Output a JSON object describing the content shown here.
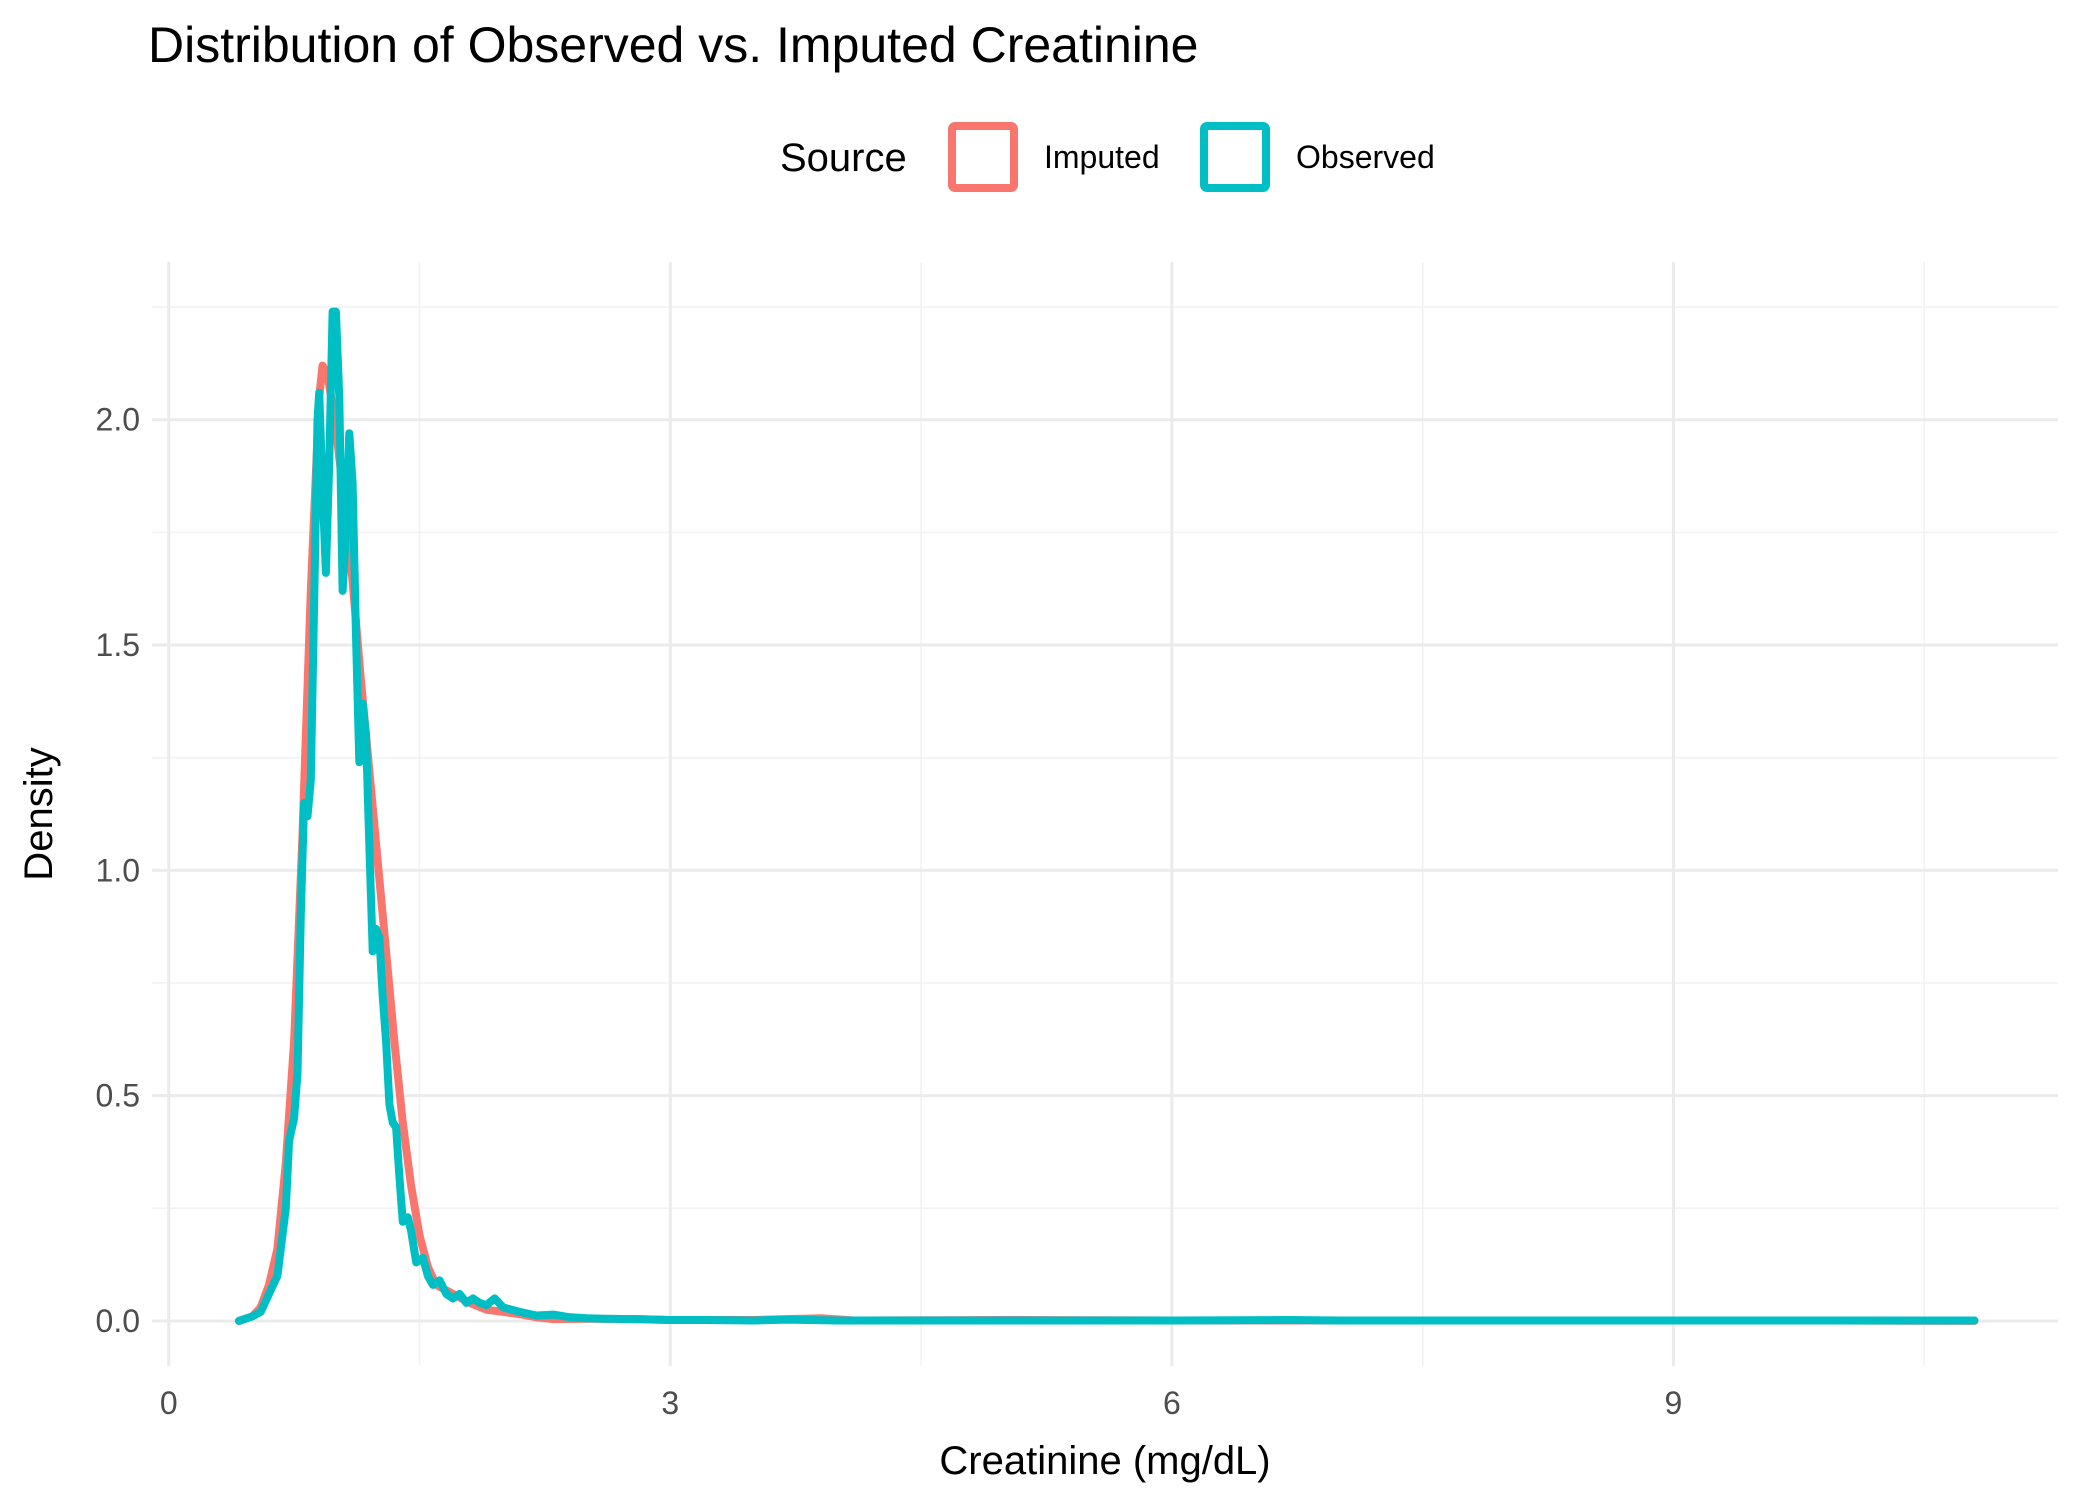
{
  "chart_data": {
    "type": "line",
    "title": "Distribution of Observed vs. Imputed Creatinine",
    "xlabel": "Creatinine (mg/dL)",
    "ylabel": "Density",
    "xlim": [
      -0.1,
      11.3
    ],
    "ylim": [
      -0.1,
      2.35
    ],
    "x_ticks": [
      0,
      3,
      6,
      9
    ],
    "x_minor_ticks": [
      1.5,
      4.5,
      7.5,
      10.5
    ],
    "y_ticks": [
      0.0,
      0.5,
      1.0,
      1.5,
      2.0
    ],
    "y_minor_ticks": [
      0.25,
      0.75,
      1.25,
      1.75,
      2.25
    ],
    "x_tick_labels": [
      "0",
      "3",
      "6",
      "9"
    ],
    "y_tick_labels": [
      "0.0",
      "0.5",
      "1.0",
      "1.5",
      "2.0"
    ],
    "grid": true,
    "legend": {
      "title": "Source",
      "position": "top",
      "entries": [
        "Imputed",
        "Observed"
      ]
    },
    "series": [
      {
        "name": "Imputed",
        "color": "#F8766D",
        "points": [
          [
            0.42,
            0.0
          ],
          [
            0.5,
            0.01
          ],
          [
            0.55,
            0.03
          ],
          [
            0.6,
            0.08
          ],
          [
            0.65,
            0.16
          ],
          [
            0.7,
            0.35
          ],
          [
            0.75,
            0.62
          ],
          [
            0.8,
            1.08
          ],
          [
            0.85,
            1.62
          ],
          [
            0.9,
            2.05
          ],
          [
            0.92,
            2.12
          ],
          [
            0.95,
            2.1
          ],
          [
            1.0,
            1.98
          ],
          [
            1.05,
            1.82
          ],
          [
            1.1,
            1.64
          ],
          [
            1.15,
            1.42
          ],
          [
            1.2,
            1.22
          ],
          [
            1.25,
            1.02
          ],
          [
            1.3,
            0.82
          ],
          [
            1.35,
            0.62
          ],
          [
            1.4,
            0.44
          ],
          [
            1.45,
            0.3
          ],
          [
            1.5,
            0.19
          ],
          [
            1.55,
            0.12
          ],
          [
            1.6,
            0.08
          ],
          [
            1.7,
            0.06
          ],
          [
            1.8,
            0.04
          ],
          [
            1.9,
            0.025
          ],
          [
            2.0,
            0.02
          ],
          [
            2.1,
            0.015
          ],
          [
            2.2,
            0.008
          ],
          [
            2.3,
            0.004
          ],
          [
            2.5,
            0.005
          ],
          [
            2.8,
            0.004
          ],
          [
            3.0,
            0.002
          ],
          [
            3.5,
            0.002
          ],
          [
            3.9,
            0.006
          ],
          [
            4.1,
            0.001
          ],
          [
            5.0,
            0.002
          ],
          [
            6.0,
            0.001
          ],
          [
            7.0,
            0.001
          ],
          [
            8.0,
            0.001
          ],
          [
            9.0,
            0.001
          ],
          [
            10.0,
            0.001
          ],
          [
            10.8,
            0.0
          ]
        ]
      },
      {
        "name": "Observed",
        "color": "#00BFC4",
        "points": [
          [
            0.42,
            0.0
          ],
          [
            0.5,
            0.01
          ],
          [
            0.55,
            0.02
          ],
          [
            0.6,
            0.06
          ],
          [
            0.65,
            0.1
          ],
          [
            0.7,
            0.25
          ],
          [
            0.72,
            0.4
          ],
          [
            0.75,
            0.45
          ],
          [
            0.77,
            0.55
          ],
          [
            0.79,
            0.9
          ],
          [
            0.81,
            1.15
          ],
          [
            0.83,
            1.12
          ],
          [
            0.85,
            1.2
          ],
          [
            0.87,
            1.6
          ],
          [
            0.89,
            2.0
          ],
          [
            0.9,
            2.06
          ],
          [
            0.92,
            1.85
          ],
          [
            0.94,
            1.66
          ],
          [
            0.96,
            1.9
          ],
          [
            0.98,
            2.24
          ],
          [
            1.0,
            2.24
          ],
          [
            1.02,
            2.05
          ],
          [
            1.04,
            1.62
          ],
          [
            1.06,
            1.75
          ],
          [
            1.08,
            1.97
          ],
          [
            1.1,
            1.86
          ],
          [
            1.12,
            1.52
          ],
          [
            1.14,
            1.24
          ],
          [
            1.16,
            1.37
          ],
          [
            1.18,
            1.3
          ],
          [
            1.2,
            1.05
          ],
          [
            1.22,
            0.82
          ],
          [
            1.24,
            0.87
          ],
          [
            1.26,
            0.85
          ],
          [
            1.28,
            0.72
          ],
          [
            1.3,
            0.62
          ],
          [
            1.32,
            0.48
          ],
          [
            1.34,
            0.44
          ],
          [
            1.36,
            0.43
          ],
          [
            1.38,
            0.32
          ],
          [
            1.4,
            0.22
          ],
          [
            1.43,
            0.23
          ],
          [
            1.45,
            0.2
          ],
          [
            1.48,
            0.13
          ],
          [
            1.52,
            0.14
          ],
          [
            1.55,
            0.1
          ],
          [
            1.58,
            0.08
          ],
          [
            1.62,
            0.09
          ],
          [
            1.66,
            0.06
          ],
          [
            1.7,
            0.05
          ],
          [
            1.74,
            0.06
          ],
          [
            1.78,
            0.04
          ],
          [
            1.82,
            0.05
          ],
          [
            1.86,
            0.04
          ],
          [
            1.9,
            0.035
          ],
          [
            1.95,
            0.05
          ],
          [
            2.0,
            0.03
          ],
          [
            2.1,
            0.02
          ],
          [
            2.2,
            0.012
          ],
          [
            2.3,
            0.014
          ],
          [
            2.4,
            0.008
          ],
          [
            2.5,
            0.006
          ],
          [
            2.6,
            0.005
          ],
          [
            2.8,
            0.004
          ],
          [
            3.0,
            0.002
          ],
          [
            3.2,
            0.002
          ],
          [
            3.5,
            0.001
          ],
          [
            3.7,
            0.003
          ],
          [
            4.0,
            0.001
          ],
          [
            5.0,
            0.001
          ],
          [
            6.0,
            0.001
          ],
          [
            6.7,
            0.002
          ],
          [
            7.0,
            0.001
          ],
          [
            8.0,
            0.001
          ],
          [
            9.0,
            0.001
          ],
          [
            10.0,
            0.001
          ],
          [
            10.8,
            0.001
          ]
        ]
      }
    ]
  }
}
